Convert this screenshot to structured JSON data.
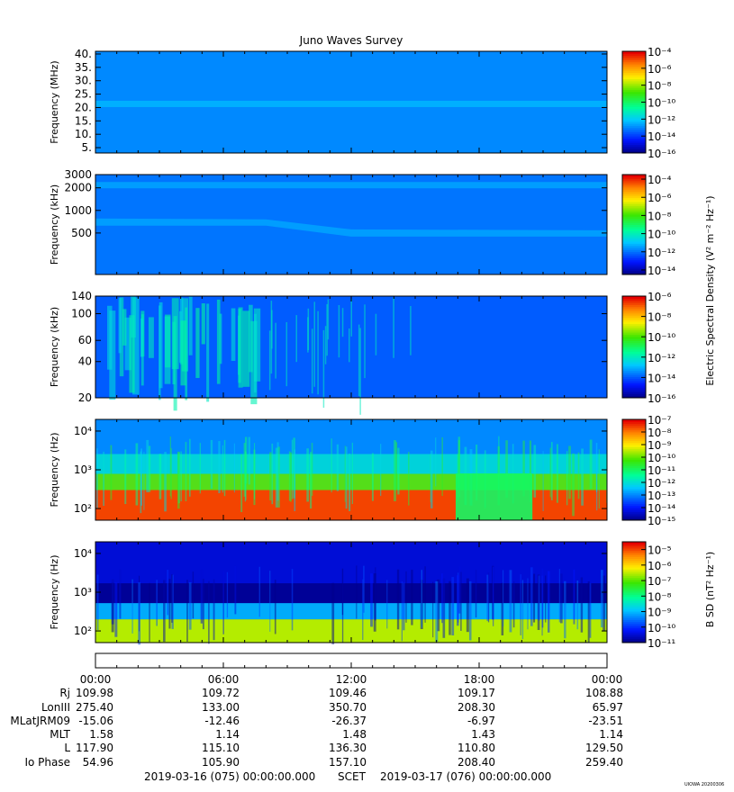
{
  "figure": {
    "title": "Juno Waves Survey",
    "watermark": "UIOWA 20200306"
  },
  "chart_data": {
    "type": "heatmap",
    "title": "Juno Waves Survey",
    "panels": [
      {
        "ylabel": "Frequency (MHz)",
        "yscale": "linear",
        "ylim": [
          3,
          41
        ],
        "yticks": [
          "5.",
          "10.",
          "15.",
          "20.",
          "25.",
          "30.",
          "35.",
          "40."
        ],
        "ytick_values": [
          5,
          10,
          15,
          20,
          25,
          30,
          35,
          40
        ],
        "colorbar": {
          "ticks": [
            "-16",
            "-14",
            "-12",
            "-10",
            "-8",
            "-6",
            "-4"
          ],
          "exponent_min": -16,
          "exponent_max": -4
        },
        "features": [
          {
            "frequency": 21.5,
            "level": -12.5,
            "description": "persistent band"
          }
        ],
        "background_level": -13
      },
      {
        "ylabel": "Frequency (kHz)",
        "yscale": "log",
        "ylim": [
          140,
          3000
        ],
        "yticks": [
          "500",
          "1000",
          "2000",
          "3000"
        ],
        "ytick_values": [
          500,
          1000,
          2000,
          3000
        ],
        "colorbar": {
          "ticks": [
            "-14",
            "-12",
            "-10",
            "-8",
            "-6",
            "-4"
          ],
          "exponent_min": -14.5,
          "exponent_max": -3.5
        },
        "features": [
          {
            "frequency": 2200,
            "level": -11.5,
            "description": "persistent band"
          },
          {
            "frequency_start": 700,
            "frequency_end": 500,
            "level": -11.5,
            "description": "drifting band"
          }
        ],
        "background_level": -12
      },
      {
        "ylabel": "Frequency (kHz)",
        "yscale": "log",
        "ylim": [
          20,
          140
        ],
        "yticks": [
          "20",
          "40",
          "60",
          "100",
          "140"
        ],
        "ytick_values": [
          20,
          40,
          60,
          100,
          140
        ],
        "colorbar": {
          "ticks": [
            "-16",
            "-14",
            "-12",
            "-10",
            "-8",
            "-6"
          ],
          "exponent_min": -16,
          "exponent_max": -6
        },
        "features": [
          {
            "time_range_hours": [
              0.5,
              7.5
            ],
            "level": -12.5,
            "description": "bursty emission"
          }
        ],
        "background_level": -14
      },
      {
        "ylabel": "Frequency (Hz)",
        "yscale": "log",
        "ylim": [
          50,
          20000
        ],
        "yticks": [
          "10²",
          "10³",
          "10⁴"
        ],
        "ytick_values": [
          100,
          1000,
          10000
        ],
        "colorbar": {
          "ticks": [
            "-15",
            "-14",
            "-13",
            "-12",
            "-11",
            "-10",
            "-9",
            "-8",
            "-7"
          ],
          "exponent_min": -15,
          "exponent_max": -7
        },
        "features": [
          {
            "frequency_range": [
              50,
              300
            ],
            "level": -7.5,
            "description": "intense low-frequency band"
          },
          {
            "time_range_hours": [
              16.9,
              20.5
            ],
            "level": -11,
            "description": "weaker interval"
          }
        ],
        "background_level": -13
      },
      {
        "ylabel": "Frequency (Hz)",
        "yscale": "log",
        "ylim": [
          50,
          20000
        ],
        "yticks": [
          "10²",
          "10³",
          "10⁴"
        ],
        "ytick_values": [
          100,
          1000,
          10000
        ],
        "colorbar": {
          "ticks": [
            "-11",
            "-10",
            "-9",
            "-8",
            "-7",
            "-6",
            "-5"
          ],
          "exponent_min": -11,
          "exponent_max": -4.5
        },
        "features": [
          {
            "frequency_range": [
              50,
              200
            ],
            "level": -6.5,
            "description": "low-frequency band"
          }
        ],
        "background_level": -10.5
      }
    ],
    "colorbar_labels": {
      "electric": "Electric Spectral Density (V² m⁻² Hz⁻¹)",
      "magnetic": "B SD (nT² Hz⁻¹)"
    },
    "time_axis": {
      "ticks": [
        "00:00",
        "06:00",
        "12:00",
        "18:00",
        "00:00"
      ],
      "hours": [
        0,
        6,
        12,
        18,
        24
      ]
    },
    "ephemeris": [
      {
        "label": "Rj",
        "values": [
          "109.98",
          "109.72",
          "109.46",
          "109.17",
          "108.88"
        ]
      },
      {
        "label": "LonIII",
        "values": [
          "275.40",
          "133.00",
          "350.70",
          "208.30",
          "65.97"
        ]
      },
      {
        "label": "MLatJRM09",
        "values": [
          "-15.06",
          "-12.46",
          "-26.37",
          "-6.97",
          "-23.51"
        ]
      },
      {
        "label": "MLT",
        "values": [
          "1.58",
          "1.14",
          "1.48",
          "1.43",
          "1.14"
        ]
      },
      {
        "label": "L",
        "values": [
          "117.90",
          "115.10",
          "136.30",
          "110.80",
          "129.50"
        ]
      },
      {
        "label": "Io Phase",
        "values": [
          "54.96",
          "105.90",
          "157.10",
          "208.40",
          "259.40"
        ]
      }
    ],
    "footer": {
      "start": "2019-03-16 (075) 00:00:00.000",
      "label": "SCET",
      "end": "2019-03-17 (076) 00:00:00.000"
    }
  }
}
